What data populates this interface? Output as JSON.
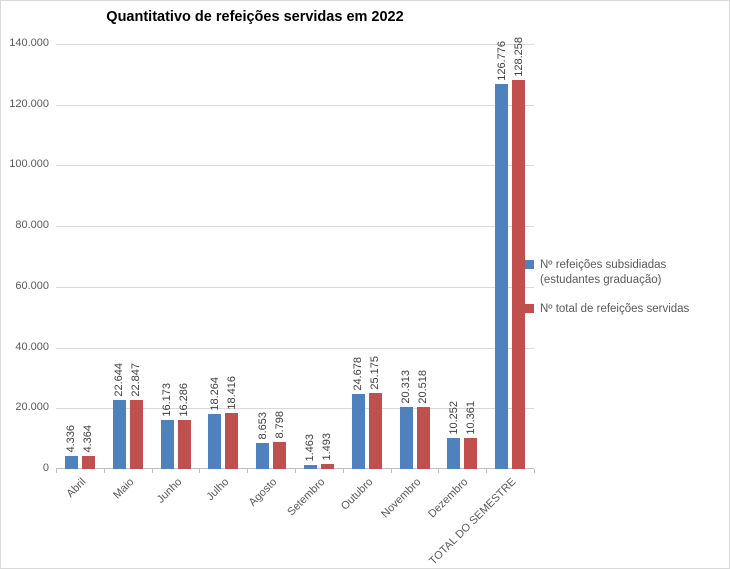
{
  "chart_data": {
    "type": "bar",
    "title": "Quantitativo de refeições servidas em 2022",
    "categories": [
      "Abril",
      "Maio",
      "Junho",
      "Julho",
      "Agosto",
      "Setembro",
      "Outubro",
      "Novembro",
      "Dezembro",
      "TOTAL DO SEMESTRE"
    ],
    "series": [
      {
        "name": "Nº refeições subsidiadas (estudantes graduação)",
        "color": "#4F81BD",
        "values": [
          4336,
          22644,
          16173,
          18264,
          8653,
          1463,
          24678,
          20313,
          10252,
          126776
        ]
      },
      {
        "name": "Nº total de refeições servidas",
        "color": "#C0504D",
        "values": [
          4364,
          22847,
          16286,
          18416,
          8798,
          1493,
          25175,
          20518,
          10361,
          128258
        ]
      }
    ],
    "ylim": [
      0,
      140000
    ],
    "ytick_step": 20000,
    "ytick_labels": [
      "0",
      "20.000",
      "40.000",
      "60.000",
      "80.000",
      "100.000",
      "120.000",
      "140.000"
    ],
    "grid": true,
    "legend_position": "right",
    "data_labels": true,
    "data_label_rotation": "vertical",
    "xlabel": "",
    "ylabel": "",
    "number_format": "thousands-dot"
  },
  "colors": {
    "gridline": "#d9d9d9",
    "axis_line": "#bfbfbf",
    "axis_text": "#595959",
    "data_label_text": "#404040",
    "chart_border": "#d9d9d9",
    "background": "#ffffff"
  }
}
